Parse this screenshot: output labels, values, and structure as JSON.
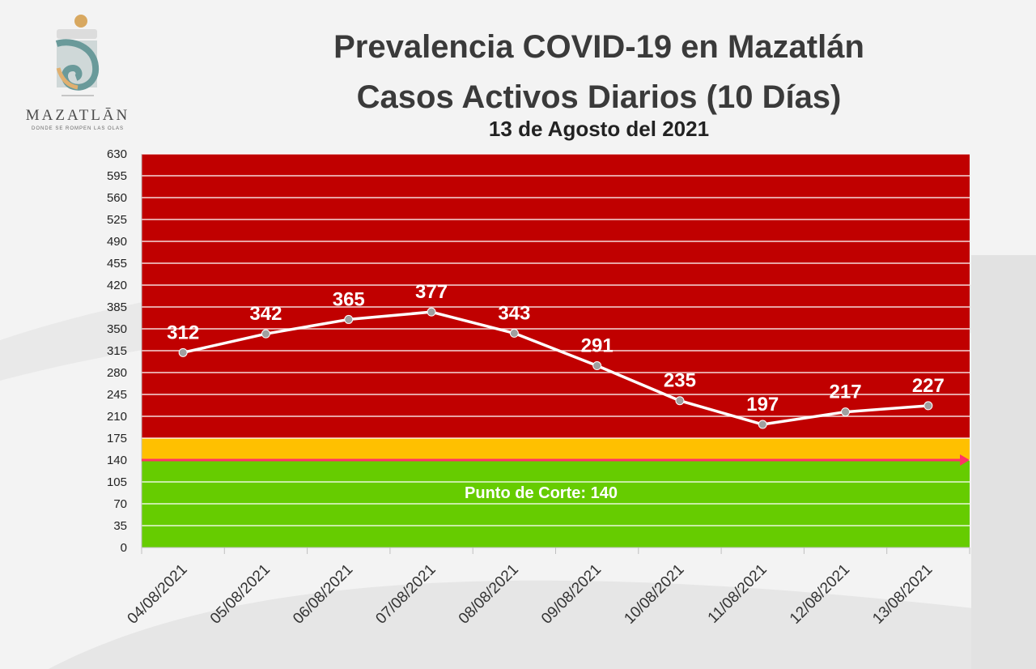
{
  "logo": {
    "name": "MAZATLĀN",
    "tagline": "DONDE SE ROMPEN LAS OLAS"
  },
  "chart_data": {
    "type": "line",
    "title": "Prevalencia COVID-19 en Mazatlán",
    "subtitle": "Casos Activos Diarios (10 Días)",
    "date_label": "13 de Agosto del 2021",
    "categories": [
      "04/08/2021",
      "05/08/2021",
      "06/08/2021",
      "07/08/2021",
      "08/08/2021",
      "09/08/2021",
      "10/08/2021",
      "11/08/2021",
      "12/08/2021",
      "13/08/2021"
    ],
    "series": [
      {
        "values": [
          312,
          342,
          365,
          377,
          343,
          291,
          235,
          197,
          217,
          227
        ]
      }
    ],
    "ylim": [
      0,
      630
    ],
    "yticks": [
      0,
      35,
      70,
      105,
      140,
      175,
      210,
      245,
      280,
      315,
      350,
      385,
      420,
      455,
      490,
      525,
      560,
      595,
      630
    ],
    "zones": [
      {
        "from": 0,
        "to": 140,
        "color": "#66cc00"
      },
      {
        "from": 140,
        "to": 175,
        "color": "#ffc000"
      },
      {
        "from": 175,
        "to": 630,
        "color": "#c00000"
      }
    ],
    "cutoff": {
      "value": 140,
      "label": "Punto de Corte: 140",
      "color": "#ff3366"
    },
    "line_color": "#ffffff",
    "marker_color": "#a0a0a0",
    "grid": true
  }
}
